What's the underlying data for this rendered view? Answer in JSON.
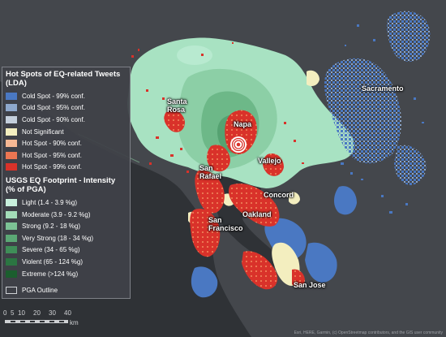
{
  "legend": {
    "title1": "Hot Spots of EQ-related Tweets (LDA)",
    "hotspot_items": [
      {
        "label": "Cold Spot - 99% conf.",
        "color": "#4a78c2"
      },
      {
        "label": "Cold Spot - 95% conf.",
        "color": "#8ea8cc"
      },
      {
        "label": "Cold Spot - 90% conf.",
        "color": "#c4cfdc"
      },
      {
        "label": "Not Significant",
        "color": "#f3eebf"
      },
      {
        "label": "Hot Spot - 90% conf.",
        "color": "#f6b894"
      },
      {
        "label": "Hot Spot - 95% conf.",
        "color": "#ec7652"
      },
      {
        "label": "Hot Spot - 99% conf.",
        "color": "#d9322a"
      }
    ],
    "title2": "USGS EQ Footprint - Intensity (% of PGA)",
    "intensity_items": [
      {
        "label": "Light (1.4 - 3.9 %g)",
        "color": "#c8f0dc"
      },
      {
        "label": "Moderate (3.9 - 9.2 %g)",
        "color": "#a3dcb8"
      },
      {
        "label": "Strong (9.2 - 18 %g)",
        "color": "#7cc295"
      },
      {
        "label": "Very Strong (18 - 34 %g)",
        "color": "#5ba875"
      },
      {
        "label": "Severe (34 - 65 %g)",
        "color": "#3f8e58"
      },
      {
        "label": "Violent (65 - 124 %g)",
        "color": "#2b7542"
      },
      {
        "label": "Extreme (>124 %g)",
        "color": "#1b5e2e"
      }
    ],
    "pga_label": "PGA Outline"
  },
  "cities": [
    "Sacramento",
    "Santa Rosa",
    "Napa",
    "Vallejo",
    "San Rafael",
    "Concord",
    "Oakland",
    "San Francisco",
    "San Jose"
  ],
  "scale": {
    "ticks": [
      "0",
      "5",
      "10",
      "20",
      "30",
      "40"
    ],
    "unit": "km"
  },
  "attribution": "Esri, HERE, Garmin, (c) OpenStreetmap contributors, and the GIS user community"
}
